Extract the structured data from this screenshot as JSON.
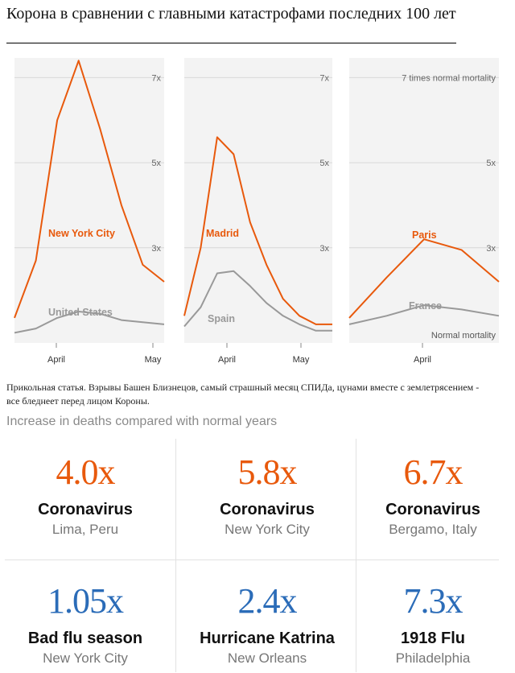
{
  "title": "Корона в сравнении с главными катастрофами последних 100 лет",
  "description": "Прикольная статья. Взрывы Башен Близнецов, самый страшный месяц СПИДа, цунами вместе с землетрясением - все бледнеет перед лицом Короны.",
  "subheading": "Increase in deaths compared with normal years",
  "colors": {
    "accent_orange": "#e8590c",
    "baseline_gray": "#999999",
    "panel_bg": "#f3f3f3",
    "blue": "#2b6cb8"
  },
  "chart_data": [
    {
      "type": "line",
      "ylim": [
        0.8,
        7.5
      ],
      "yticks": [
        "3x",
        "5x",
        "7x"
      ],
      "xticks": [
        "April",
        "May"
      ],
      "series": [
        {
          "name": "New York City",
          "values": [
            1.35,
            2.7,
            6.0,
            7.4,
            5.8,
            4.0,
            2.6,
            2.2
          ]
        },
        {
          "name": "United States",
          "values": [
            1.0,
            1.1,
            1.35,
            1.5,
            1.45,
            1.3,
            1.25,
            1.2
          ]
        }
      ]
    },
    {
      "type": "line",
      "ylim": [
        0.8,
        7.5
      ],
      "yticks": [
        "3x",
        "5x",
        "7x"
      ],
      "xticks": [
        "April",
        "May"
      ],
      "series": [
        {
          "name": "Madrid",
          "values": [
            1.4,
            3.0,
            5.6,
            5.2,
            3.6,
            2.6,
            1.8,
            1.4,
            1.2,
            1.2
          ]
        },
        {
          "name": "Spain",
          "values": [
            1.15,
            1.6,
            2.4,
            2.45,
            2.1,
            1.7,
            1.4,
            1.2,
            1.05,
            1.05
          ]
        }
      ]
    },
    {
      "type": "line",
      "ylim": [
        0.8,
        7.5
      ],
      "yticks": [
        "3x",
        "5x",
        "7 times normal mortality"
      ],
      "xticks": [
        "April"
      ],
      "baseline_label": "Normal mortality",
      "series": [
        {
          "name": "Paris",
          "values": [
            1.35,
            2.3,
            3.2,
            2.95,
            2.2
          ]
        },
        {
          "name": "France",
          "values": [
            1.2,
            1.4,
            1.65,
            1.55,
            1.4
          ]
        }
      ]
    }
  ],
  "comparisons": [
    {
      "value": "4.0x",
      "name": "Coronavirus",
      "place": "Lima, Peru",
      "color": "orange"
    },
    {
      "value": "5.8x",
      "name": "Coronavirus",
      "place": "New York City",
      "color": "orange"
    },
    {
      "value": "6.7x",
      "name": "Coronavirus",
      "place": "Bergamo, Italy",
      "color": "orange"
    },
    {
      "value": "1.05x",
      "name": "Bad flu season",
      "place": "New York City",
      "color": "blue"
    },
    {
      "value": "2.4x",
      "name": "Hurricane Katrina",
      "place": "New Orleans",
      "color": "blue"
    },
    {
      "value": "7.3x",
      "name": "1918 Flu",
      "place": "Philadelphia",
      "color": "blue"
    }
  ]
}
